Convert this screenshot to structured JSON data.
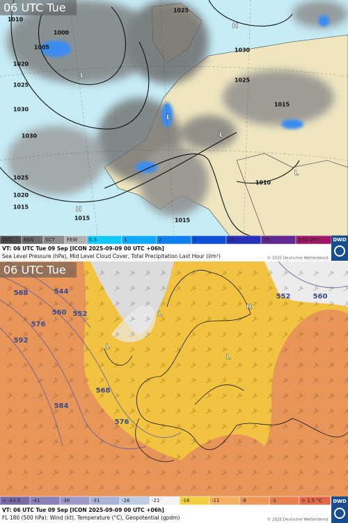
{
  "panels": [
    {
      "time_label": "06 UTC Tue",
      "legend": [
        "OVC",
        "BKN",
        "SCT",
        "FEW",
        "0.5",
        "1",
        "2",
        "5",
        "10",
        "25",
        "≥50 l/m²"
      ],
      "caption_line1": "VT: 06 UTC Tue  09 Sep [ICON 2025-09-09 00 UTC +06h]",
      "caption_line2": "Sea Level Pressure (hPa), Mid Level Cloud Cover, Total Precipitation Last Hour (l/m²)",
      "copyright": "© 2025 Deutscher Wetterdienst",
      "logo": "DWD",
      "map_labels": [
        "1010",
        "1005",
        "1000",
        "1020",
        "1025",
        "1030",
        "1030",
        "1025",
        "1020",
        "1015",
        "1015",
        "1015",
        "1010",
        "1015",
        "1025",
        "1030",
        "1025",
        "L",
        "L",
        "L",
        "H",
        "H",
        "L"
      ]
    },
    {
      "time_label": "06 UTC Tue",
      "legend": [
        "< -43.5",
        "-41",
        "-36",
        "-31",
        "-26",
        "-21",
        "-16",
        "-11",
        "-6",
        "-1",
        "> 1.5 °C"
      ],
      "caption_line1": "VT: 06 UTC Tue  09 Sep [ICON 2025-09-09 00 UTC +06h]",
      "caption_line2": "FL 180 (500 hPa): Wind (kt), Temperature (°C), Geopotential (gpdm)",
      "copyright": "© 2025 Deutscher Wetterdienst",
      "logo": "DWD",
      "map_labels": [
        "568",
        "576",
        "592",
        "584",
        "576",
        "568",
        "560",
        "552",
        "544",
        "552",
        "560",
        "L",
        "L",
        "H",
        "L"
      ]
    }
  ]
}
